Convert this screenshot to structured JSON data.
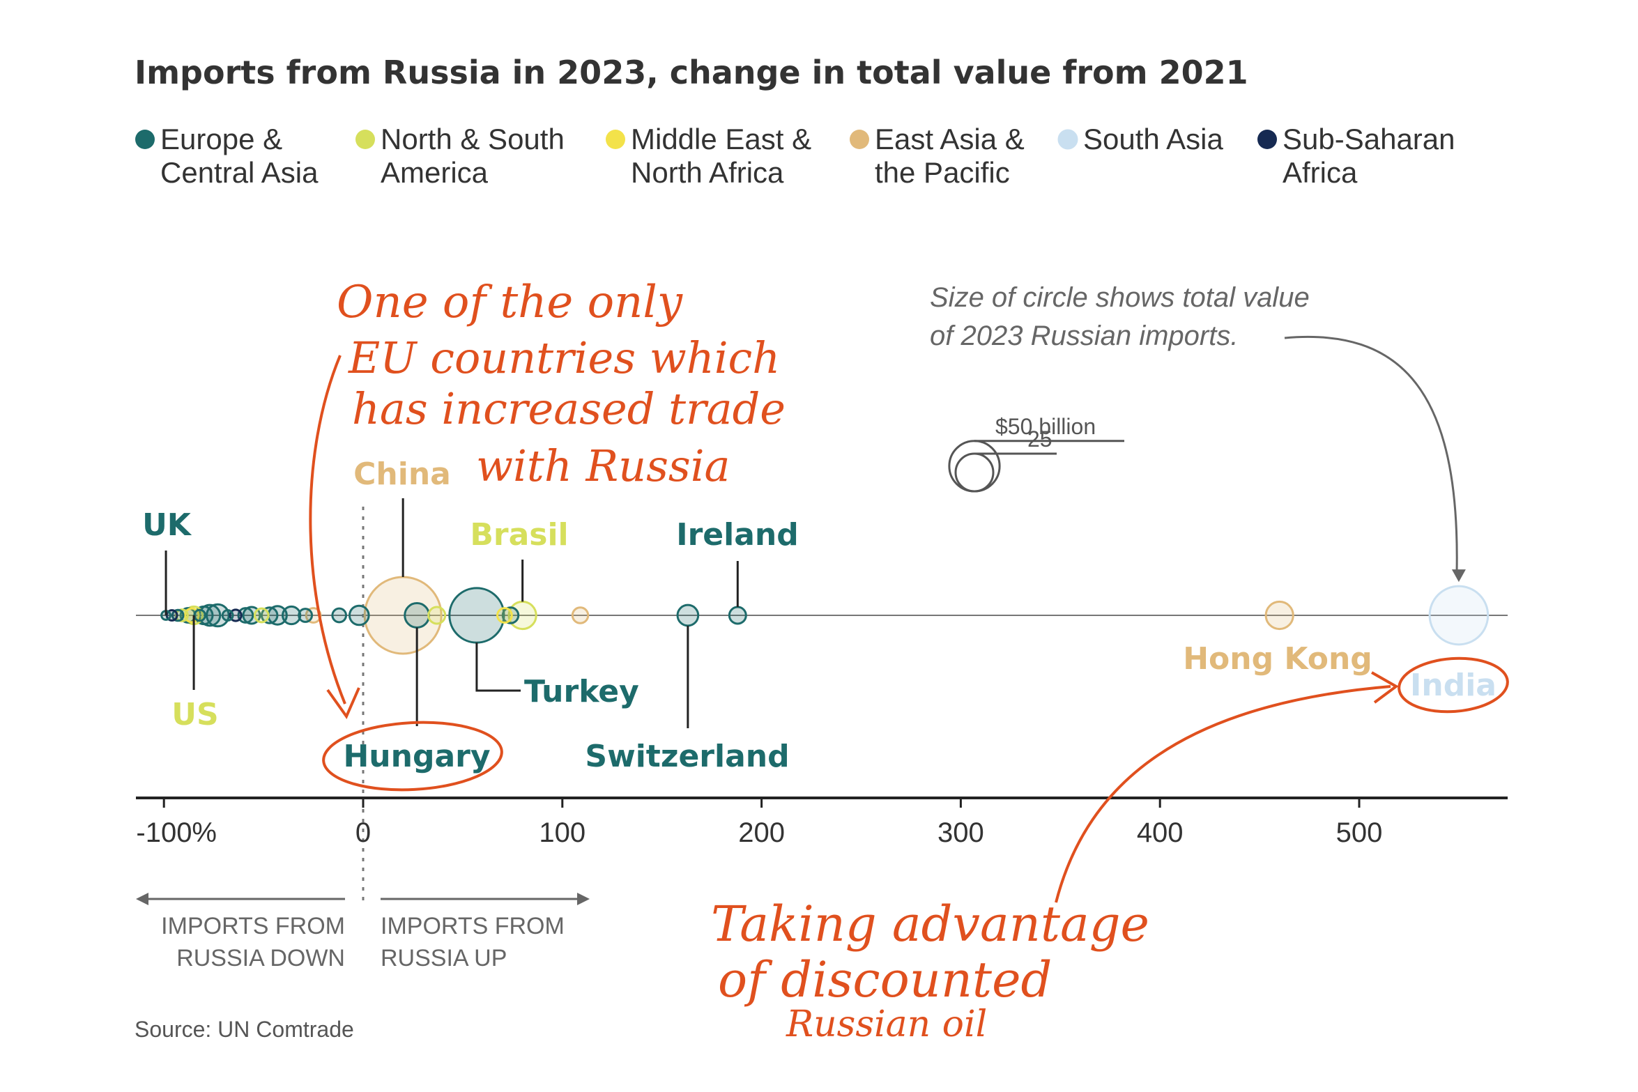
{
  "colors": {
    "europe_central_asia": "#1d6b6b",
    "north_south_america": "#d6df5c",
    "middle_east_north_africa": "#f3e24a",
    "east_asia_pacific": "#e1b97a",
    "south_asia": "#c9dff0",
    "sub_saharan_africa": "#162a52",
    "annotation": "#e0501e"
  },
  "chart_data": {
    "type": "scatter",
    "title": "Imports from Russia in 2023, change in total value from 2021",
    "xlim": [
      -100,
      580
    ],
    "x_ticks": [
      -100,
      0,
      100,
      200,
      300,
      400,
      500
    ],
    "x_tick_labels": [
      "-100%",
      "0",
      "100",
      "200",
      "300",
      "400",
      "500"
    ],
    "legend": {
      "placement": "top",
      "entries": [
        {
          "key": "europe_central_asia",
          "line1": "Europe &",
          "line2": "Central Asia"
        },
        {
          "key": "north_south_america",
          "line1": "North & South",
          "line2": "America"
        },
        {
          "key": "middle_east_north_africa",
          "line1": "Middle East &",
          "line2": "North Africa"
        },
        {
          "key": "east_asia_pacific",
          "line1": "East Asia &",
          "line2": "the Pacific"
        },
        {
          "key": "south_asia",
          "line1": "South Asia",
          "line2": ""
        },
        {
          "key": "sub_saharan_africa",
          "line1": "Sub-Saharan",
          "line2": "Africa"
        }
      ]
    },
    "size_legend": {
      "note_line1": "Size of circle shows total value",
      "note_line2": "of 2023 Russian imports.",
      "big_label": "$50 billion",
      "small_label": "25",
      "big_value": 50,
      "small_value": 25
    },
    "labeled_points": [
      {
        "country": "UK",
        "x": -99,
        "value": 0.1,
        "region": "europe_central_asia"
      },
      {
        "country": "US",
        "x": -85,
        "value": 3,
        "region": "north_south_america"
      },
      {
        "country": "China",
        "x": 20,
        "value": 129,
        "region": "east_asia_pacific"
      },
      {
        "country": "Hungary",
        "x": 27,
        "value": 8,
        "region": "europe_central_asia"
      },
      {
        "country": "Turkey",
        "x": 57,
        "value": 60,
        "region": "europe_central_asia"
      },
      {
        "country": "Brasil",
        "x": 80,
        "value": 11,
        "region": "north_south_america"
      },
      {
        "country": "Switzerland",
        "x": 163,
        "value": 5,
        "region": "europe_central_asia"
      },
      {
        "country": "Ireland",
        "x": 188,
        "value": 2.5,
        "region": "europe_central_asia"
      },
      {
        "country": "Hong Kong",
        "x": 460,
        "value": 11,
        "region": "east_asia_pacific"
      },
      {
        "country": "India",
        "x": 550,
        "value": 70,
        "region": "south_asia"
      }
    ],
    "other_points": [
      {
        "x": -96,
        "value": 0.3,
        "region": "sub_saharan_africa"
      },
      {
        "x": -93,
        "value": 0.4,
        "region": "europe_central_asia"
      },
      {
        "x": -91,
        "value": 0.6,
        "region": "north_south_america"
      },
      {
        "x": -88,
        "value": 1.5,
        "region": "europe_central_asia"
      },
      {
        "x": -86,
        "value": 1.2,
        "region": "middle_east_north_africa"
      },
      {
        "x": -82,
        "value": 0.4,
        "region": "europe_central_asia"
      },
      {
        "x": -80,
        "value": 3,
        "region": "europe_central_asia"
      },
      {
        "x": -77,
        "value": 5,
        "region": "europe_central_asia"
      },
      {
        "x": -73,
        "value": 6,
        "region": "europe_central_asia"
      },
      {
        "x": -68,
        "value": 0.3,
        "region": "europe_central_asia"
      },
      {
        "x": -64,
        "value": 0.5,
        "region": "sub_saharan_africa"
      },
      {
        "x": -59,
        "value": 1.5,
        "region": "europe_central_asia"
      },
      {
        "x": -56,
        "value": 2.5,
        "region": "europe_central_asia"
      },
      {
        "x": -51,
        "value": 1.2,
        "region": "north_south_america"
      },
      {
        "x": -47,
        "value": 2,
        "region": "europe_central_asia"
      },
      {
        "x": -43,
        "value": 3.5,
        "region": "europe_central_asia"
      },
      {
        "x": -36,
        "value": 3,
        "region": "europe_central_asia"
      },
      {
        "x": -29,
        "value": 1,
        "region": "europe_central_asia"
      },
      {
        "x": -25,
        "value": 1.5,
        "region": "east_asia_pacific"
      },
      {
        "x": -12,
        "value": 1.2,
        "region": "europe_central_asia"
      },
      {
        "x": -2,
        "value": 4,
        "region": "europe_central_asia"
      },
      {
        "x": 37,
        "value": 2.5,
        "region": "north_south_america"
      },
      {
        "x": 71,
        "value": 1.5,
        "region": "middle_east_north_africa"
      },
      {
        "x": 74,
        "value": 2,
        "region": "europe_central_asia"
      },
      {
        "x": 109,
        "value": 2,
        "region": "east_asia_pacific"
      }
    ],
    "direction_labels": {
      "down_line1": "IMPORTS FROM",
      "down_line2": "RUSSIA DOWN",
      "up_line1": "IMPORTS FROM",
      "up_line2": "RUSSIA UP"
    },
    "annotations": {
      "hungary_note": [
        "One of the only",
        "EU countries which",
        "has increased trade",
        "with Russia"
      ],
      "india_note": [
        "Taking advantage",
        "of discounted",
        "Russian oil"
      ]
    },
    "source": "Source: UN Comtrade"
  }
}
